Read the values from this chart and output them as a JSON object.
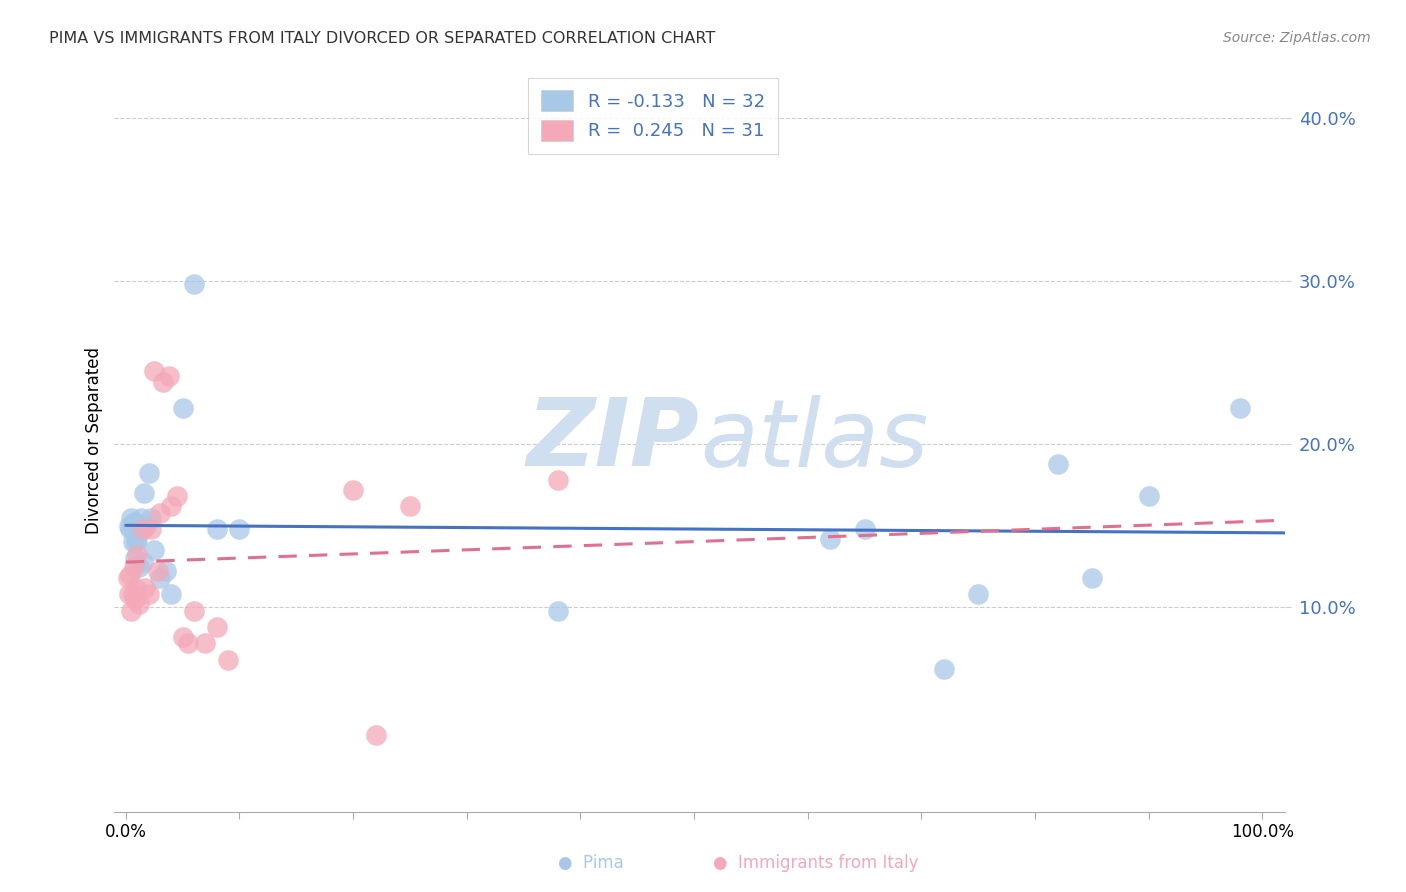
{
  "title": "PIMA VS IMMIGRANTS FROM ITALY DIVORCED OR SEPARATED CORRELATION CHART",
  "source": "Source: ZipAtlas.com",
  "ylabel": "Divorced or Separated",
  "xlim": [
    -0.01,
    1.02
  ],
  "ylim": [
    -0.025,
    0.43
  ],
  "yticks": [
    0.1,
    0.2,
    0.3,
    0.4
  ],
  "ytick_labels": [
    "10.0%",
    "20.0%",
    "30.0%",
    "40.0%"
  ],
  "pima_R": -0.133,
  "pima_N": 32,
  "italy_R": 0.245,
  "italy_N": 31,
  "pima_color": "#a8c8e8",
  "italy_color": "#f4a8b8",
  "pima_line_color": "#4472c4",
  "italy_line_color": "#e07090",
  "legend_text_color": "#4472c4",
  "ytick_color": "#4472c4",
  "watermark_color": "#d0dff0",
  "pima_x": [
    0.003,
    0.004,
    0.005,
    0.006,
    0.007,
    0.008,
    0.009,
    0.01,
    0.012,
    0.013,
    0.015,
    0.016,
    0.018,
    0.02,
    0.022,
    0.025,
    0.03,
    0.035,
    0.04,
    0.05,
    0.06,
    0.08,
    0.1,
    0.38,
    0.62,
    0.65,
    0.72,
    0.75,
    0.82,
    0.85,
    0.9,
    0.98
  ],
  "pima_y": [
    0.15,
    0.148,
    0.155,
    0.14,
    0.152,
    0.13,
    0.14,
    0.142,
    0.125,
    0.155,
    0.128,
    0.17,
    0.15,
    0.182,
    0.155,
    0.135,
    0.118,
    0.122,
    0.108,
    0.222,
    0.298,
    0.148,
    0.148,
    0.098,
    0.142,
    0.148,
    0.062,
    0.108,
    0.188,
    0.118,
    0.168,
    0.222
  ],
  "italy_x": [
    0.002,
    0.003,
    0.004,
    0.005,
    0.006,
    0.007,
    0.008,
    0.009,
    0.01,
    0.012,
    0.015,
    0.017,
    0.02,
    0.022,
    0.025,
    0.028,
    0.03,
    0.033,
    0.038,
    0.04,
    0.045,
    0.05,
    0.055,
    0.06,
    0.07,
    0.08,
    0.09,
    0.2,
    0.25,
    0.38,
    0.22
  ],
  "italy_y": [
    0.118,
    0.108,
    0.12,
    0.098,
    0.108,
    0.125,
    0.105,
    0.112,
    0.132,
    0.102,
    0.148,
    0.112,
    0.108,
    0.148,
    0.245,
    0.122,
    0.158,
    0.238,
    0.242,
    0.162,
    0.168,
    0.082,
    0.078,
    0.098,
    0.078,
    0.088,
    0.068,
    0.172,
    0.162,
    0.178,
    0.022
  ]
}
